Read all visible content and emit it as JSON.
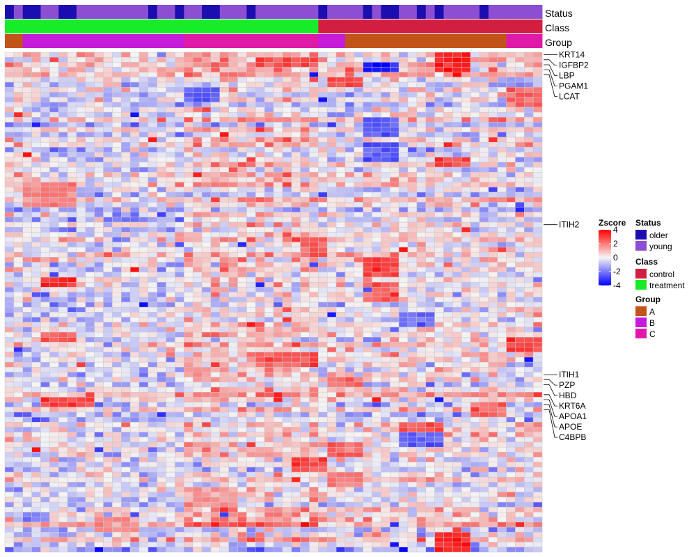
{
  "chart_data": {
    "type": "heatmap",
    "title": "",
    "n_columns": 60,
    "n_rows": 100,
    "value_range": [
      -4,
      4
    ],
    "annotations": [
      {
        "name": "Status",
        "values": [
          "older",
          "young",
          "older",
          "older",
          "young",
          "young",
          "older",
          "older",
          "young",
          "young",
          "young",
          "young",
          "young",
          "young",
          "young",
          "young",
          "older",
          "young",
          "young",
          "older",
          "young",
          "young",
          "older",
          "older",
          "young",
          "young",
          "young",
          "older",
          "young",
          "young",
          "young",
          "young",
          "young",
          "young",
          "young",
          "older",
          "young",
          "young",
          "young",
          "young",
          "older",
          "young",
          "older",
          "older",
          "young",
          "young",
          "older",
          "young",
          "older",
          "young",
          "young",
          "young",
          "young",
          "older",
          "young",
          "young",
          "young",
          "young",
          "young",
          "young"
        ]
      },
      {
        "name": "Class",
        "values": [
          "treatment",
          "treatment",
          "treatment",
          "treatment",
          "treatment",
          "treatment",
          "treatment",
          "treatment",
          "treatment",
          "treatment",
          "treatment",
          "treatment",
          "treatment",
          "treatment",
          "treatment",
          "treatment",
          "treatment",
          "treatment",
          "treatment",
          "treatment",
          "treatment",
          "treatment",
          "treatment",
          "treatment",
          "treatment",
          "treatment",
          "treatment",
          "treatment",
          "treatment",
          "treatment",
          "treatment",
          "treatment",
          "treatment",
          "treatment",
          "treatment",
          "control",
          "control",
          "control",
          "control",
          "control",
          "control",
          "control",
          "control",
          "control",
          "control",
          "control",
          "control",
          "control",
          "control",
          "control",
          "control",
          "control",
          "control",
          "control",
          "control",
          "control",
          "control",
          "control",
          "control",
          "control"
        ]
      },
      {
        "name": "Group",
        "values": [
          "A",
          "A",
          "B",
          "B",
          "B",
          "B",
          "B",
          "B",
          "B",
          "B",
          "B",
          "B",
          "B",
          "B",
          "B",
          "B",
          "B",
          "B",
          "B",
          "B",
          "C",
          "C",
          "C",
          "C",
          "C",
          "C",
          "C",
          "C",
          "C",
          "C",
          "C",
          "C",
          "C",
          "C",
          "C",
          "B",
          "B",
          "B",
          "A",
          "A",
          "A",
          "A",
          "A",
          "A",
          "A",
          "A",
          "A",
          "A",
          "A",
          "A",
          "A",
          "A",
          "A",
          "A",
          "A",
          "A",
          "C",
          "C",
          "C",
          "C"
        ]
      }
    ],
    "row_labels": [
      {
        "row": 0,
        "label": "KRT14"
      },
      {
        "row": 1,
        "label": "IGFBP2"
      },
      {
        "row": 2,
        "label": "LBP"
      },
      {
        "row": 3,
        "label": "PGAM1"
      },
      {
        "row": 4,
        "label": "LCAT"
      },
      {
        "row": 34,
        "label": "ITIH2"
      },
      {
        "row": 64,
        "label": "ITIH1"
      },
      {
        "row": 65,
        "label": "PZP"
      },
      {
        "row": 66,
        "label": "HBD"
      },
      {
        "row": 68,
        "label": "KRT6A"
      },
      {
        "row": 69,
        "label": "APOA1"
      },
      {
        "row": 70,
        "label": "APOE"
      },
      {
        "row": 71,
        "label": "C4BPB"
      }
    ],
    "blocks": [
      {
        "rows": [
          0,
          3
        ],
        "cols": [
          48,
          51
        ],
        "value": 3.5
      },
      {
        "rows": [
          1,
          2
        ],
        "cols": [
          28,
          34
        ],
        "value": 2.8
      },
      {
        "rows": [
          2,
          3
        ],
        "cols": [
          40,
          43
        ],
        "value": -3.6
      },
      {
        "rows": [
          5,
          6
        ],
        "cols": [
          36,
          39
        ],
        "value": 2.6
      },
      {
        "rows": [
          7,
          9
        ],
        "cols": [
          20,
          23
        ],
        "value": -2.6
      },
      {
        "rows": [
          7,
          10
        ],
        "cols": [
          56,
          59
        ],
        "value": 2.4
      },
      {
        "rows": [
          13,
          16
        ],
        "cols": [
          40,
          43
        ],
        "value": -2.6
      },
      {
        "rows": [
          18,
          21
        ],
        "cols": [
          40,
          43
        ],
        "value": -2.6
      },
      {
        "rows": [
          21,
          22
        ],
        "cols": [
          48,
          51
        ],
        "value": 2.8
      },
      {
        "rows": [
          26,
          30
        ],
        "cols": [
          2,
          7
        ],
        "value": 1.8
      },
      {
        "rows": [
          32,
          33
        ],
        "cols": [
          12,
          14
        ],
        "value": -2.2
      },
      {
        "rows": [
          37,
          40
        ],
        "cols": [
          33,
          35
        ],
        "value": 2.5
      },
      {
        "rows": [
          41,
          44
        ],
        "cols": [
          40,
          43
        ],
        "value": 2.8
      },
      {
        "rows": [
          45,
          46
        ],
        "cols": [
          4,
          7
        ],
        "value": 3.0
      },
      {
        "rows": [
          46,
          49
        ],
        "cols": [
          40,
          43
        ],
        "value": 2.3
      },
      {
        "rows": [
          52,
          54
        ],
        "cols": [
          44,
          47
        ],
        "value": -2.3
      },
      {
        "rows": [
          56,
          57
        ],
        "cols": [
          4,
          7
        ],
        "value": 2.6
      },
      {
        "rows": [
          57,
          59
        ],
        "cols": [
          56,
          59
        ],
        "value": 2.6
      },
      {
        "rows": [
          60,
          62
        ],
        "cols": [
          28,
          34
        ],
        "value": 2.7
      },
      {
        "rows": [
          65,
          66
        ],
        "cols": [
          36,
          39
        ],
        "value": 2.5
      },
      {
        "rows": [
          69,
          70
        ],
        "cols": [
          4,
          9
        ],
        "value": 3.0
      },
      {
        "rows": [
          70,
          72
        ],
        "cols": [
          52,
          55
        ],
        "value": 2.3
      },
      {
        "rows": [
          74,
          76
        ],
        "cols": [
          44,
          48
        ],
        "value": 2.6
      },
      {
        "rows": [
          76,
          78
        ],
        "cols": [
          44,
          48
        ],
        "value": -2.4
      },
      {
        "rows": [
          78,
          80
        ],
        "cols": [
          36,
          39
        ],
        "value": 2.4
      },
      {
        "rows": [
          81,
          83
        ],
        "cols": [
          32,
          35
        ],
        "value": 2.8
      },
      {
        "rows": [
          84,
          86
        ],
        "cols": [
          36,
          39
        ],
        "value": 2.0
      },
      {
        "rows": [
          87,
          90
        ],
        "cols": [
          20,
          25
        ],
        "value": 1.6
      },
      {
        "rows": [
          92,
          93
        ],
        "cols": [
          2,
          4
        ],
        "value": -2.0
      },
      {
        "rows": [
          93,
          95
        ],
        "cols": [
          10,
          14
        ],
        "value": 1.6
      },
      {
        "rows": [
          96,
          99
        ],
        "cols": [
          48,
          51
        ],
        "value": 3.5
      }
    ],
    "legend": {
      "zscore": {
        "title": "Zscore",
        "ticks": [
          4,
          2,
          0,
          -2,
          -4
        ]
      },
      "status": {
        "title": "Status",
        "items": [
          {
            "label": "older",
            "color": "#1c0db0"
          },
          {
            "label": "young",
            "color": "#8c4fd4"
          }
        ]
      },
      "class": {
        "title": "Class",
        "items": [
          {
            "label": "control",
            "color": "#d21e3f"
          },
          {
            "label": "treatment",
            "color": "#18ec28"
          }
        ]
      },
      "group": {
        "title": "Group",
        "items": [
          {
            "label": "A",
            "color": "#c2541a"
          },
          {
            "label": "B",
            "color": "#c41cd8"
          },
          {
            "label": "C",
            "color": "#e01aa8"
          }
        ]
      }
    },
    "colors": {
      "low": "#0000ff",
      "mid": "#f5f5f5",
      "high": "#ff0000",
      "grid_line": "#c8c8c8"
    },
    "seed": 7
  }
}
